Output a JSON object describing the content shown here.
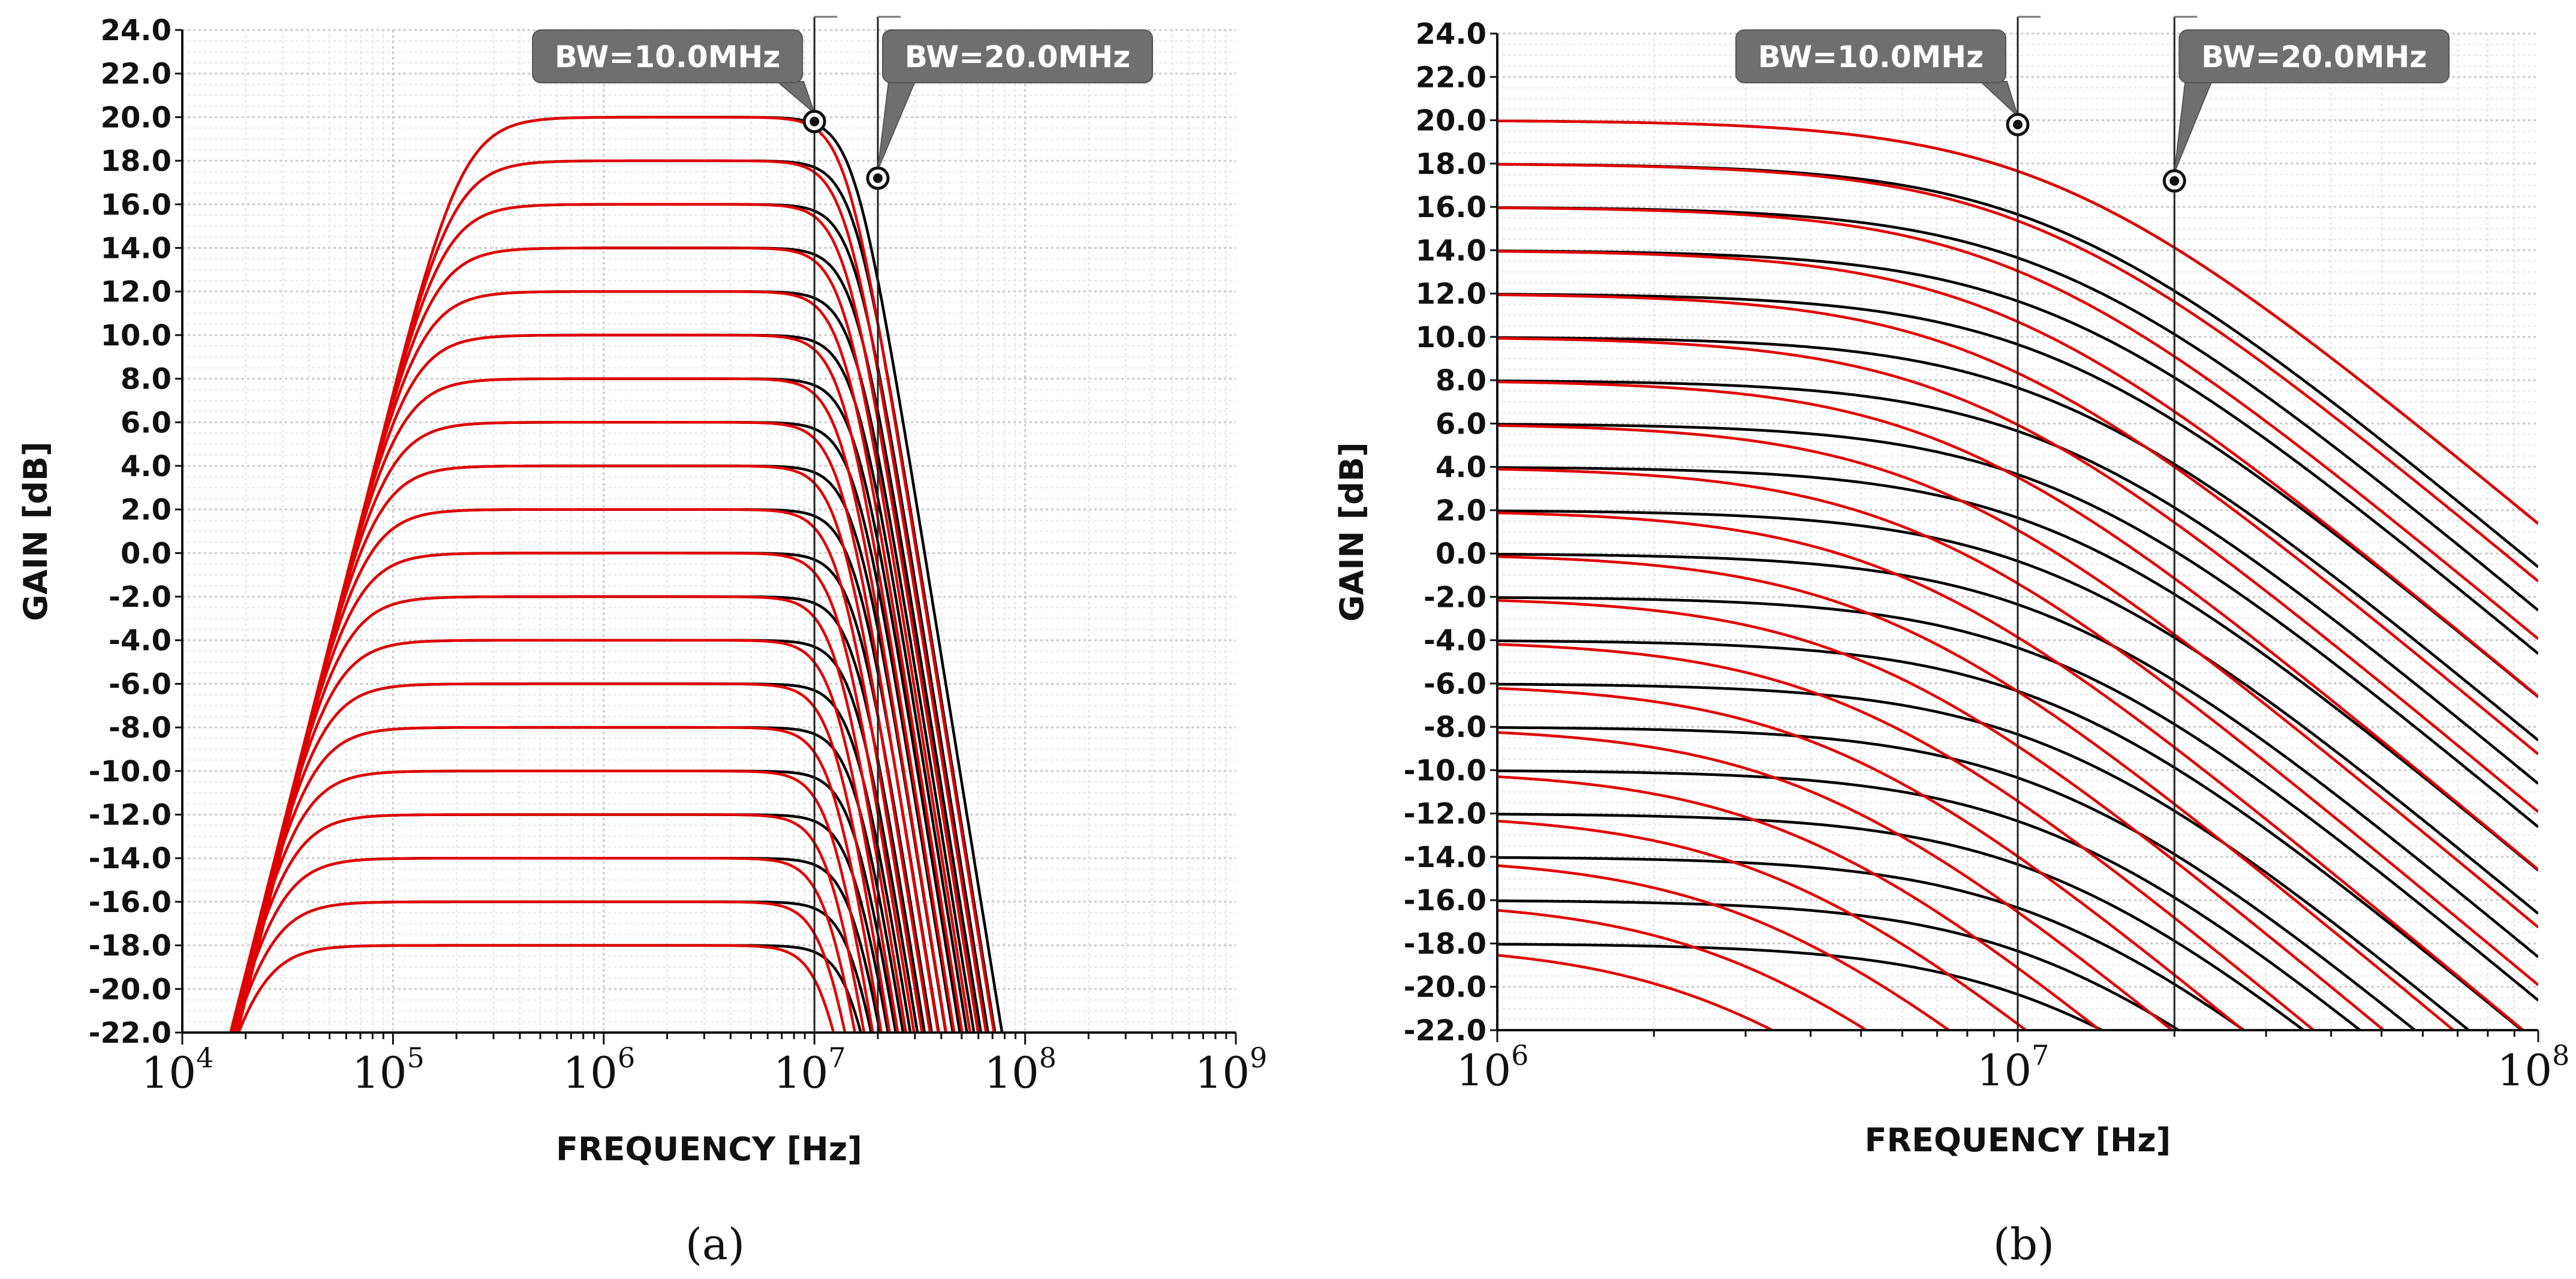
{
  "chart_data": [
    {
      "type": "line",
      "panel_label": "(a)",
      "xscale": "log",
      "xlim": [
        10000,
        1000000000
      ],
      "ylim": [
        -22,
        24
      ],
      "xticks": [
        10000,
        100000,
        1000000,
        10000000,
        100000000,
        1000000000
      ],
      "xtick_base": "10",
      "xtick_exponents": [
        "4",
        "5",
        "6",
        "7",
        "8",
        "9"
      ],
      "yticks": [
        "24.0",
        "22.0",
        "20.0",
        "18.0",
        "16.0",
        "14.0",
        "12.0",
        "10.0",
        "8.0",
        "6.0",
        "4.0",
        "2.0",
        "0.0",
        "-2.0",
        "-4.0",
        "-6.0",
        "-8.0",
        "-10.0",
        "-12.0",
        "-14.0",
        "-16.0",
        "-18.0",
        "-20.0",
        "-22.0"
      ],
      "ylabel": "GAIN [dB]",
      "xlabel": "FREQUENCY [Hz]",
      "grid": true,
      "filter": "band-pass",
      "series_note": "Family of band-pass responses, gain steps 20 to -18 dB, simulated (black) vs model (red)",
      "gains_db": [
        20,
        18,
        16,
        14,
        12,
        10,
        8,
        6,
        4,
        2,
        0,
        -2,
        -4,
        -6,
        -8,
        -10,
        -12,
        -14,
        -16,
        -18
      ],
      "series_colors": {
        "simulated": "#000000",
        "model": "#e00000"
      },
      "markers": [
        {
          "label": "BW=10.0MHz",
          "x": 10000000,
          "y": 19.8
        },
        {
          "label": "BW=20.0MHz",
          "x": 20000000,
          "y": 17.2
        }
      ]
    },
    {
      "type": "line",
      "panel_label": "(b)",
      "xscale": "log",
      "xlim": [
        1000000,
        100000000
      ],
      "ylim": [
        -22,
        24
      ],
      "xticks": [
        1000000,
        10000000,
        100000000
      ],
      "xtick_base": "10",
      "xtick_exponents": [
        "6",
        "7",
        "8"
      ],
      "yticks": [
        "24.0",
        "22.0",
        "20.0",
        "18.0",
        "16.0",
        "14.0",
        "12.0",
        "10.0",
        "8.0",
        "6.0",
        "4.0",
        "2.0",
        "0.0",
        "-2.0",
        "-4.0",
        "-6.0",
        "-8.0",
        "-10.0",
        "-12.0",
        "-14.0",
        "-16.0",
        "-18.0",
        "-20.0",
        "-22.0"
      ],
      "ylabel": "GAIN [dB]",
      "xlabel": "FREQUENCY [Hz]",
      "grid": true,
      "filter": "low-pass",
      "series_note": "Family of low-pass responses, gain steps 20 to -18 dB, simulated (black) vs model (red)",
      "gains_db": [
        20,
        18,
        16,
        14,
        12,
        10,
        8,
        6,
        4,
        2,
        0,
        -2,
        -4,
        -6,
        -8,
        -10,
        -12,
        -14,
        -16,
        -18
      ],
      "series_colors": {
        "simulated": "#000000",
        "model": "#e00000"
      },
      "markers": [
        {
          "label": "BW=10.0MHz",
          "x": 10000000,
          "y": 19.8
        },
        {
          "label": "BW=20.0MHz",
          "x": 20000000,
          "y": 17.2
        }
      ]
    }
  ]
}
